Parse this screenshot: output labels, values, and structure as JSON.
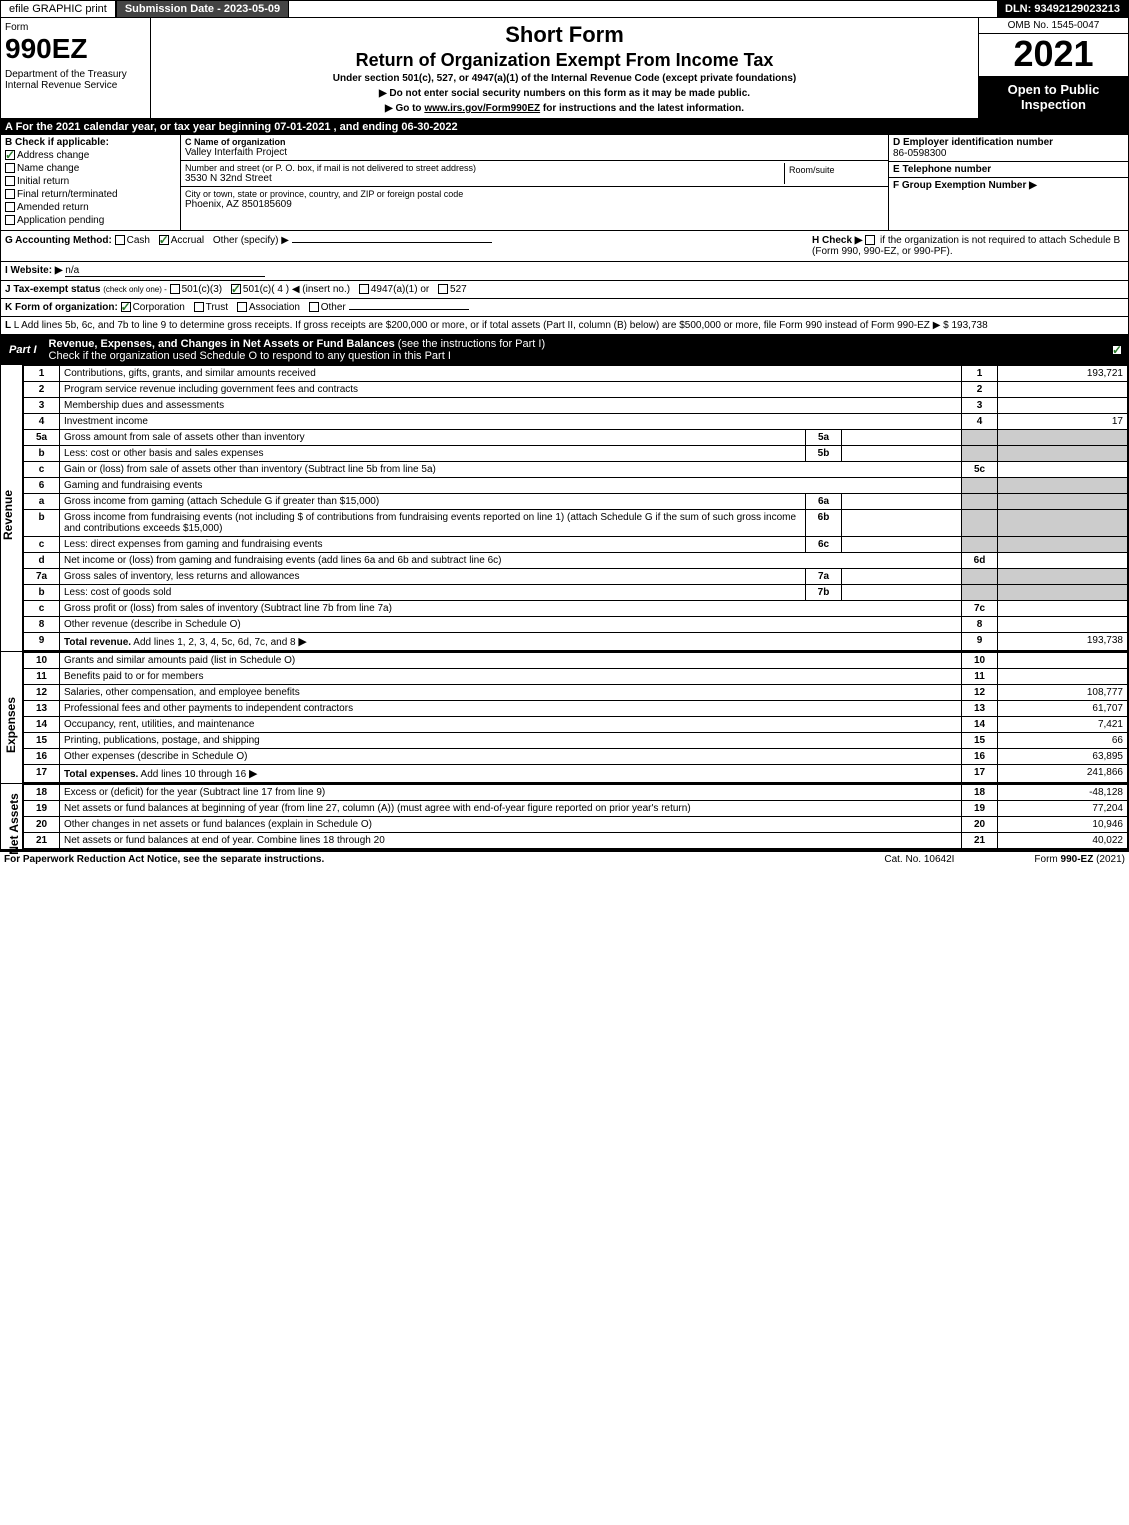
{
  "topbar": {
    "efile_label": "efile GRAPHIC print",
    "submission_label": "Submission Date - 2023-05-09",
    "dln_label": "DLN: 93492129023213"
  },
  "header": {
    "form_label": "Form",
    "form_number": "990EZ",
    "dept": "Department of the Treasury\nInternal Revenue Service",
    "title1": "Short Form",
    "title2": "Return of Organization Exempt From Income Tax",
    "under": "Under section 501(c), 527, or 4947(a)(1) of the Internal Revenue Code (except private foundations)",
    "instr1": "▶ Do not enter social security numbers on this form as it may be made public.",
    "instr2": "▶ Go to www.irs.gov/Form990EZ for instructions and the latest information.",
    "omb": "OMB No. 1545-0047",
    "year": "2021",
    "open": "Open to Public Inspection"
  },
  "line_a": "A  For the 2021 calendar year, or tax year beginning 07-01-2021 , and ending 06-30-2022",
  "section_b": {
    "label": "B  Check if applicable:",
    "items": [
      {
        "label": "Address change",
        "checked": true
      },
      {
        "label": "Name change",
        "checked": false
      },
      {
        "label": "Initial return",
        "checked": false
      },
      {
        "label": "Final return/terminated",
        "checked": false
      },
      {
        "label": "Amended return",
        "checked": false
      },
      {
        "label": "Application pending",
        "checked": false
      }
    ]
  },
  "section_c": {
    "name_label": "C Name of organization",
    "name": "Valley Interfaith Project",
    "street_label": "Number and street (or P. O. box, if mail is not delivered to street address)",
    "street": "3530 N 32nd Street",
    "room_label": "Room/suite",
    "city_label": "City or town, state or province, country, and ZIP or foreign postal code",
    "city": "Phoenix, AZ  850185609"
  },
  "section_d": {
    "ein_label": "D Employer identification number",
    "ein": "86-0598300",
    "phone_label": "E Telephone number",
    "phone": "",
    "group_label": "F Group Exemption Number   ▶",
    "group": ""
  },
  "line_g": {
    "label": "G Accounting Method:",
    "cash": "Cash",
    "accrual": "Accrual",
    "other": "Other (specify) ▶"
  },
  "line_h": {
    "label": "H  Check ▶",
    "text": "if the organization is not required to attach Schedule B (Form 990, 990-EZ, or 990-PF)."
  },
  "line_i": {
    "label": "I Website: ▶",
    "value": "n/a"
  },
  "line_j": {
    "label": "J Tax-exempt status",
    "sub": "(check only one) -",
    "opt1": "501(c)(3)",
    "opt2": "501(c)( 4 ) ◀ (insert no.)",
    "opt3": "4947(a)(1) or",
    "opt4": "527"
  },
  "line_k": {
    "label": "K Form of organization:",
    "opts": [
      "Corporation",
      "Trust",
      "Association",
      "Other"
    ]
  },
  "line_l": {
    "text": "L Add lines 5b, 6c, and 7b to line 9 to determine gross receipts. If gross receipts are $200,000 or more, or if total assets (Part II, column (B) below) are $500,000 or more, file Form 990 instead of Form 990-EZ",
    "arrow": "▶ $",
    "value": "193,738"
  },
  "part1": {
    "label": "Part I",
    "title": "Revenue, Expenses, and Changes in Net Assets or Fund Balances",
    "subtitle": "(see the instructions for Part I)",
    "check_text": "Check if the organization used Schedule O to respond to any question in this Part I"
  },
  "revenue": {
    "side": "Revenue",
    "rows": [
      {
        "n": "1",
        "desc": "Contributions, gifts, grants, and similar amounts received",
        "rn": "1",
        "rv": "193,721"
      },
      {
        "n": "2",
        "desc": "Program service revenue including government fees and contracts",
        "rn": "2",
        "rv": ""
      },
      {
        "n": "3",
        "desc": "Membership dues and assessments",
        "rn": "3",
        "rv": ""
      },
      {
        "n": "4",
        "desc": "Investment income",
        "rn": "4",
        "rv": "17"
      },
      {
        "n": "5a",
        "desc": "Gross amount from sale of assets other than inventory",
        "mn": "5a",
        "mv": "",
        "gray_rt": true
      },
      {
        "n": "b",
        "desc": "Less: cost or other basis and sales expenses",
        "mn": "5b",
        "mv": "",
        "gray_rt": true
      },
      {
        "n": "c",
        "desc": "Gain or (loss) from sale of assets other than inventory (Subtract line 5b from line 5a)",
        "rn": "5c",
        "rv": ""
      },
      {
        "n": "6",
        "desc": "Gaming and fundraising events",
        "gray_rt": true,
        "no_rn": true
      },
      {
        "n": "a",
        "desc": "Gross income from gaming (attach Schedule G if greater than $15,000)",
        "mn": "6a",
        "mv": "",
        "gray_rt": true
      },
      {
        "n": "b",
        "desc": "Gross income from fundraising events (not including $                           of contributions from fundraising events reported on line 1) (attach Schedule G if the sum of such gross income and contributions exceeds $15,000)",
        "mn": "6b",
        "mv": "",
        "gray_rt": true
      },
      {
        "n": "c",
        "desc": "Less: direct expenses from gaming and fundraising events",
        "mn": "6c",
        "mv": "",
        "gray_rt": true
      },
      {
        "n": "d",
        "desc": "Net income or (loss) from gaming and fundraising events (add lines 6a and 6b and subtract line 6c)",
        "rn": "6d",
        "rv": ""
      },
      {
        "n": "7a",
        "desc": "Gross sales of inventory, less returns and allowances",
        "mn": "7a",
        "mv": "",
        "gray_rt": true
      },
      {
        "n": "b",
        "desc": "Less: cost of goods sold",
        "mn": "7b",
        "mv": "",
        "gray_rt": true
      },
      {
        "n": "c",
        "desc": "Gross profit or (loss) from sales of inventory (Subtract line 7b from line 7a)",
        "rn": "7c",
        "rv": ""
      },
      {
        "n": "8",
        "desc": "Other revenue (describe in Schedule O)",
        "rn": "8",
        "rv": ""
      },
      {
        "n": "9",
        "desc": "Total revenue. Add lines 1, 2, 3, 4, 5c, 6d, 7c, and 8",
        "rn": "9",
        "rv": "193,738",
        "bold": true,
        "arrow": true
      }
    ]
  },
  "expenses": {
    "side": "Expenses",
    "rows": [
      {
        "n": "10",
        "desc": "Grants and similar amounts paid (list in Schedule O)",
        "rn": "10",
        "rv": ""
      },
      {
        "n": "11",
        "desc": "Benefits paid to or for members",
        "rn": "11",
        "rv": ""
      },
      {
        "n": "12",
        "desc": "Salaries, other compensation, and employee benefits",
        "rn": "12",
        "rv": "108,777"
      },
      {
        "n": "13",
        "desc": "Professional fees and other payments to independent contractors",
        "rn": "13",
        "rv": "61,707"
      },
      {
        "n": "14",
        "desc": "Occupancy, rent, utilities, and maintenance",
        "rn": "14",
        "rv": "7,421"
      },
      {
        "n": "15",
        "desc": "Printing, publications, postage, and shipping",
        "rn": "15",
        "rv": "66"
      },
      {
        "n": "16",
        "desc": "Other expenses (describe in Schedule O)",
        "rn": "16",
        "rv": "63,895"
      },
      {
        "n": "17",
        "desc": "Total expenses. Add lines 10 through 16",
        "rn": "17",
        "rv": "241,866",
        "bold": true,
        "arrow": true
      }
    ]
  },
  "netassets": {
    "side": "Net Assets",
    "rows": [
      {
        "n": "18",
        "desc": "Excess or (deficit) for the year (Subtract line 17 from line 9)",
        "rn": "18",
        "rv": "-48,128"
      },
      {
        "n": "19",
        "desc": "Net assets or fund balances at beginning of year (from line 27, column (A)) (must agree with end-of-year figure reported on prior year's return)",
        "rn": "19",
        "rv": "77,204"
      },
      {
        "n": "20",
        "desc": "Other changes in net assets or fund balances (explain in Schedule O)",
        "rn": "20",
        "rv": "10,946"
      },
      {
        "n": "21",
        "desc": "Net assets or fund balances at end of year. Combine lines 18 through 20",
        "rn": "21",
        "rv": "40,022"
      }
    ]
  },
  "footer": {
    "left": "For Paperwork Reduction Act Notice, see the separate instructions.",
    "mid": "Cat. No. 10642I",
    "right": "Form 990-EZ (2021)"
  }
}
